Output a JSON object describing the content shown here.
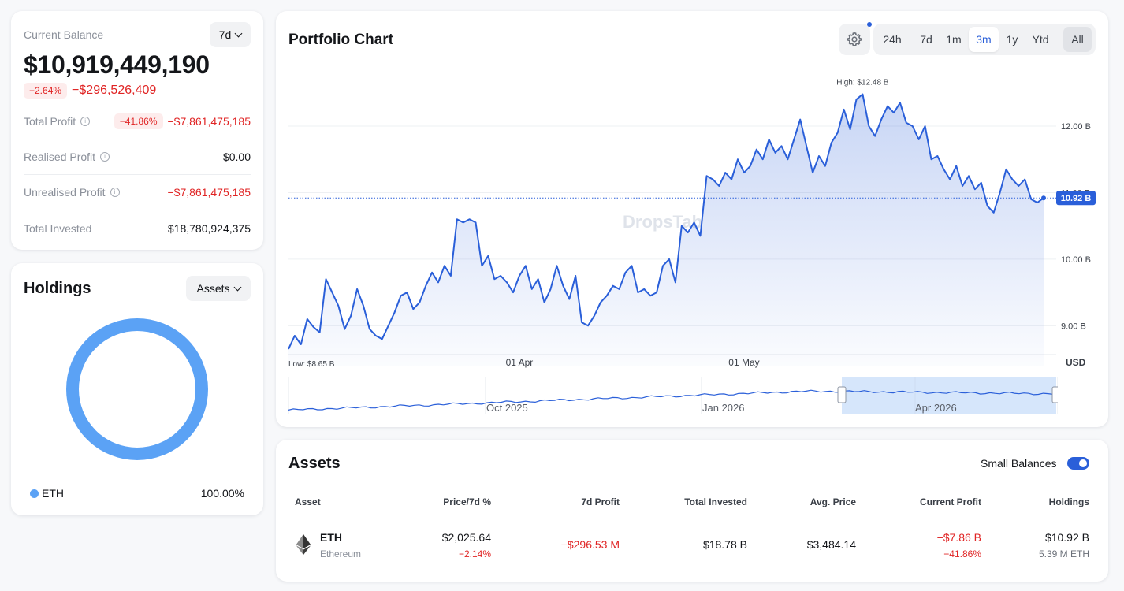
{
  "balance": {
    "label": "Current Balance",
    "period": "7d",
    "value": "$10,919,449,190",
    "change_pct": "−2.64%",
    "change_abs": "−$296,526,409",
    "rows": [
      {
        "label": "Total Profit",
        "badge": "−41.86%",
        "value": "−$7,861,475,185",
        "negative": true
      },
      {
        "label": "Realised Profit",
        "badge": "",
        "value": "$0.00",
        "negative": false
      },
      {
        "label": "Unrealised Profit",
        "badge": "",
        "value": "−$7,861,475,185",
        "negative": true
      },
      {
        "label": "Total Invested",
        "badge": "",
        "value": "$18,780,924,375",
        "negative": false
      }
    ]
  },
  "holdings": {
    "title": "Holdings",
    "view": "Assets",
    "items": [
      {
        "symbol": "ETH",
        "share": "100.00%",
        "color": "#5ba2f5"
      }
    ]
  },
  "chart": {
    "title": "Portfolio Chart",
    "ranges": [
      "24h",
      "7d",
      "1m",
      "3m",
      "1y",
      "Ytd",
      "All"
    ],
    "active_range": "3m",
    "high_label": "High: $12.48 B",
    "low_label": "Low: $8.65 B",
    "current_label": "10.92 B",
    "currency": "USD",
    "watermark": "DropsTab",
    "nav_labels": [
      "Oct 2025",
      "Jan 2026",
      "Apr 2026"
    ],
    "accent": "#2a5fd9"
  },
  "chart_data": {
    "type": "area",
    "y_unit": "B USD",
    "ylim": [
      8.4,
      12.9
    ],
    "y_ticks": [
      {
        "value": 9,
        "label": "9.00 B"
      },
      {
        "value": 10,
        "label": "10.00 B"
      },
      {
        "value": 11,
        "label": "11.00 B"
      },
      {
        "value": 12,
        "label": "12.00 B"
      }
    ],
    "x_ticks": [
      {
        "index": 37,
        "label": "01 Apr"
      },
      {
        "index": 73,
        "label": "01 May"
      }
    ],
    "high": 12.48,
    "low": 8.65,
    "current": 10.92,
    "values": [
      8.65,
      8.85,
      8.72,
      9.1,
      8.98,
      8.9,
      9.7,
      9.5,
      9.3,
      8.95,
      9.15,
      9.55,
      9.3,
      8.95,
      8.85,
      8.8,
      9.0,
      9.2,
      9.45,
      9.5,
      9.25,
      9.35,
      9.6,
      9.8,
      9.65,
      9.9,
      9.75,
      10.6,
      10.55,
      10.6,
      10.55,
      9.9,
      10.05,
      9.7,
      9.75,
      9.65,
      9.5,
      9.75,
      9.9,
      9.55,
      9.7,
      9.35,
      9.55,
      9.9,
      9.6,
      9.4,
      9.75,
      9.05,
      9.0,
      9.15,
      9.35,
      9.45,
      9.6,
      9.55,
      9.8,
      9.9,
      9.5,
      9.55,
      9.45,
      9.5,
      9.9,
      10.0,
      9.65,
      10.5,
      10.4,
      10.55,
      10.35,
      11.25,
      11.2,
      11.1,
      11.3,
      11.2,
      11.5,
      11.3,
      11.4,
      11.65,
      11.5,
      11.8,
      11.6,
      11.7,
      11.5,
      11.8,
      12.1,
      11.7,
      11.3,
      11.55,
      11.4,
      11.75,
      11.9,
      12.25,
      11.95,
      12.4,
      12.48,
      12.0,
      11.85,
      12.1,
      12.3,
      12.2,
      12.35,
      12.05,
      12.0,
      11.8,
      12.0,
      11.5,
      11.55,
      11.35,
      11.2,
      11.4,
      11.1,
      11.25,
      11.05,
      11.15,
      10.8,
      10.7,
      11.0,
      11.35,
      11.2,
      11.1,
      11.2,
      10.9,
      10.85,
      10.92
    ]
  },
  "assets": {
    "title": "Assets",
    "small_balances_label": "Small Balances",
    "columns": [
      "Asset",
      "Price/7d %",
      "7d Profit",
      "Total Invested",
      "Avg. Price",
      "Current Profit",
      "Holdings"
    ],
    "rows": [
      {
        "symbol": "ETH",
        "name": "Ethereum",
        "price": "$2,025.64",
        "price_change": "−2.14%",
        "profit_7d": "−$296.53 M",
        "total_invested": "$18.78 B",
        "avg_price": "$3,484.14",
        "current_profit": "−$7.86 B",
        "current_profit_pct": "−41.86%",
        "holdings_value": "$10.92 B",
        "holdings_amount": "5.39 M ETH"
      }
    ]
  }
}
